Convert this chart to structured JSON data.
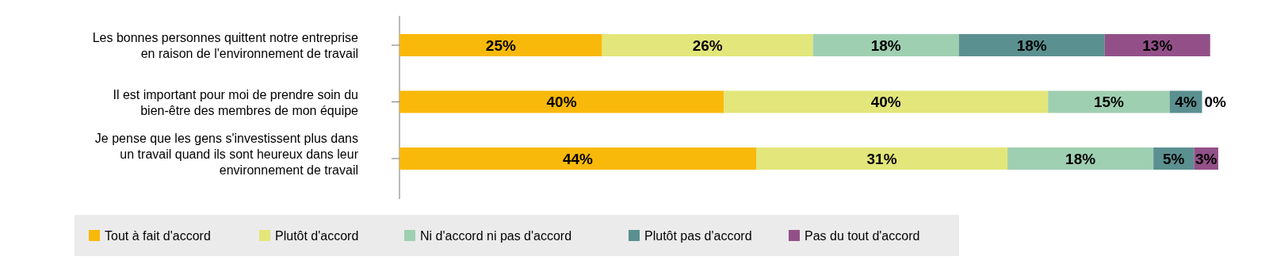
{
  "chart_data": {
    "type": "bar",
    "orientation": "horizontal",
    "stacked": true,
    "legend": "bottom",
    "xlim": [
      0,
      101
    ],
    "tick_labels": "y",
    "categories": [
      "Les bonnes personnes quittent notre entreprise\nen raison de l'environnement de travail",
      "Il est important pour moi de prendre soin du\nbien-être des membres de mon équipe",
      "Je pense que les gens s'investissent plus dans\nun travail quand ils sont heureux dans leur\nenvironnement de travail"
    ],
    "series": [
      {
        "name": "Tout à fait d'accord",
        "color": "#f9b90b",
        "values": [
          25,
          40,
          44
        ],
        "value_labels": [
          "25%",
          "40%",
          "44%"
        ]
      },
      {
        "name": "Plutôt d'accord",
        "color": "#e3e67a",
        "values": [
          26,
          40,
          31
        ],
        "value_labels": [
          "26%",
          "40%",
          "31%"
        ]
      },
      {
        "name": "Ni d'accord ni pas d'accord",
        "color": "#9fcfb1",
        "values": [
          18,
          15,
          18
        ],
        "value_labels": [
          "18%",
          "15%",
          "18%"
        ]
      },
      {
        "name": "Plutôt pas d'accord",
        "color": "#5b9090",
        "values": [
          18,
          4,
          5
        ],
        "value_labels": [
          "18%",
          "4%",
          "5%"
        ]
      },
      {
        "name": "Pas du tout d'accord",
        "color": "#935088",
        "values": [
          13,
          0,
          3
        ],
        "value_labels": [
          "13%",
          "0%",
          "3%"
        ]
      }
    ]
  }
}
